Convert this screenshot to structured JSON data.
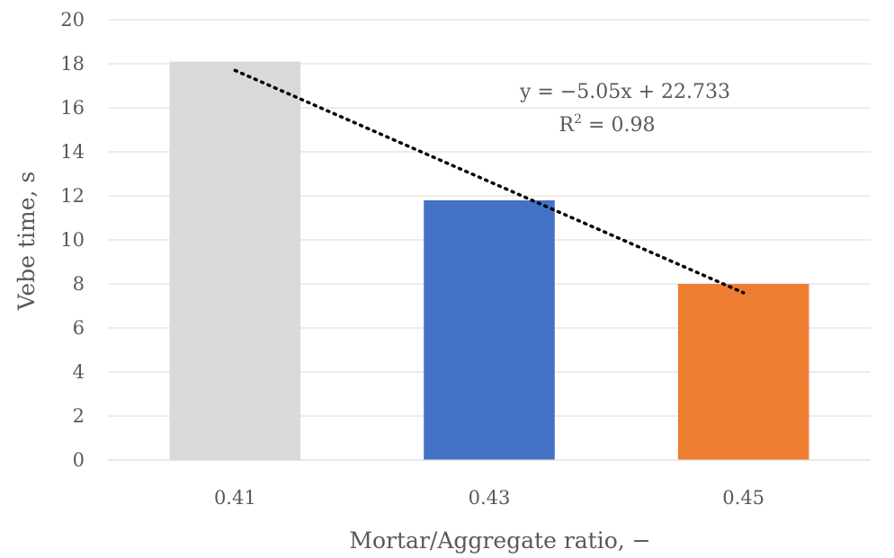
{
  "chart_data": {
    "type": "bar",
    "categories": [
      "0.41",
      "0.43",
      "0.45"
    ],
    "values": [
      18.1,
      11.8,
      8.0
    ],
    "colors": [
      "#d9d9d9",
      "#4472c4",
      "#ed7d31"
    ],
    "xlabel": "Mortar/Aggregate ratio, −",
    "ylabel": "Vebe time, s",
    "ylim": [
      0,
      20
    ],
    "yticks": [
      "0",
      "2",
      "4",
      "6",
      "8",
      "10",
      "12",
      "14",
      "16",
      "18",
      "20"
    ],
    "grid": true,
    "legend": "none",
    "trendline": {
      "type": "linear",
      "style": "dotted",
      "color": "#000000",
      "start_value": 17.7,
      "end_value": 7.6
    },
    "annotations": {
      "equation": "y = −5.05x + 22.733",
      "r2_label": "R",
      "r2_superscript": "2",
      "r2_value": " = 0.98"
    }
  }
}
